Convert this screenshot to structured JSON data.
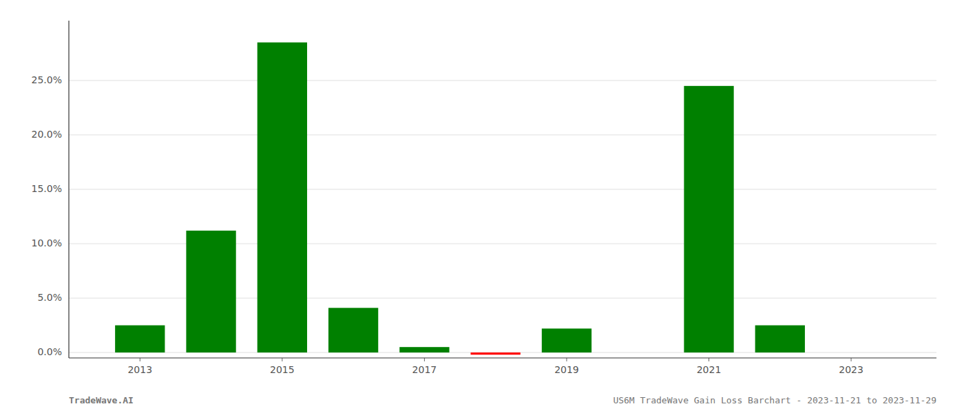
{
  "chart_data": {
    "type": "bar",
    "x": [
      2013,
      2014,
      2015,
      2016,
      2017,
      2018,
      2019,
      2020,
      2021,
      2022
    ],
    "values": [
      0.025,
      0.112,
      0.285,
      0.041,
      0.005,
      -0.002,
      0.022,
      0.0,
      0.245,
      0.025
    ],
    "colors": [
      "#008000",
      "#008000",
      "#008000",
      "#008000",
      "#008000",
      "#FF0000",
      "#008000",
      "#008000",
      "#008000",
      "#008000"
    ],
    "xlim": [
      2012.0,
      2024.2
    ],
    "xticks": [
      2013,
      2015,
      2017,
      2019,
      2021,
      2023
    ],
    "ylim": [
      -0.005,
      0.305
    ],
    "yticks": [
      {
        "value": 0.0,
        "label": "0.0%"
      },
      {
        "value": 0.05,
        "label": "5.0%"
      },
      {
        "value": 0.1,
        "label": "10.0%"
      },
      {
        "value": 0.15,
        "label": "15.0%"
      },
      {
        "value": 0.2,
        "label": "20.0%"
      },
      {
        "value": 0.25,
        "label": "25.0%"
      }
    ],
    "grid": true,
    "annotations": [
      "TradeWave.AI",
      "US6M TradeWave Gain Loss Barchart - 2023-11-21 to 2023-11-29"
    ]
  }
}
